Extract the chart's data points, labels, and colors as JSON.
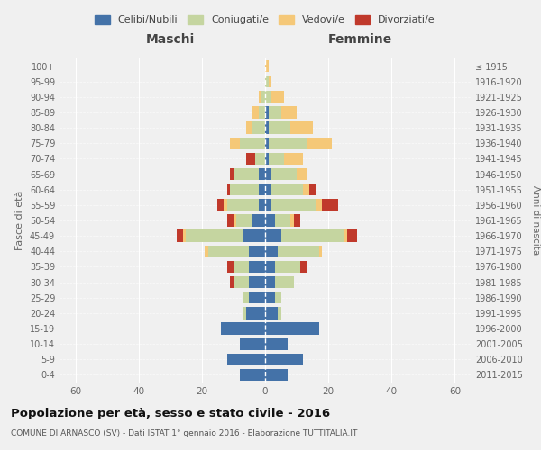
{
  "age_groups": [
    "0-4",
    "5-9",
    "10-14",
    "15-19",
    "20-24",
    "25-29",
    "30-34",
    "35-39",
    "40-44",
    "45-49",
    "50-54",
    "55-59",
    "60-64",
    "65-69",
    "70-74",
    "75-79",
    "80-84",
    "85-89",
    "90-94",
    "95-99",
    "100+"
  ],
  "birth_years": [
    "2011-2015",
    "2006-2010",
    "2001-2005",
    "1996-2000",
    "1991-1995",
    "1986-1990",
    "1981-1985",
    "1976-1980",
    "1971-1975",
    "1966-1970",
    "1961-1965",
    "1956-1960",
    "1951-1955",
    "1946-1950",
    "1941-1945",
    "1936-1940",
    "1931-1935",
    "1926-1930",
    "1921-1925",
    "1916-1920",
    "≤ 1915"
  ],
  "maschi": {
    "celibi": [
      8,
      12,
      8,
      14,
      6,
      5,
      5,
      5,
      5,
      7,
      4,
      2,
      2,
      2,
      0,
      0,
      0,
      0,
      0,
      0,
      0
    ],
    "coniugati": [
      0,
      0,
      0,
      0,
      1,
      2,
      5,
      5,
      13,
      18,
      5,
      10,
      9,
      8,
      3,
      8,
      4,
      2,
      1,
      0,
      0
    ],
    "vedovi": [
      0,
      0,
      0,
      0,
      0,
      0,
      0,
      0,
      1,
      1,
      1,
      1,
      0,
      0,
      0,
      3,
      2,
      2,
      1,
      0,
      0
    ],
    "divorziati": [
      0,
      0,
      0,
      0,
      0,
      0,
      1,
      2,
      0,
      2,
      2,
      2,
      1,
      1,
      3,
      0,
      0,
      0,
      0,
      0,
      0
    ]
  },
  "femmine": {
    "nubili": [
      7,
      12,
      7,
      17,
      4,
      3,
      3,
      3,
      4,
      5,
      3,
      2,
      2,
      2,
      1,
      1,
      1,
      1,
      0,
      0,
      0
    ],
    "coniugate": [
      0,
      0,
      0,
      0,
      1,
      2,
      6,
      8,
      13,
      20,
      5,
      14,
      10,
      8,
      5,
      12,
      7,
      4,
      2,
      1,
      0
    ],
    "vedove": [
      0,
      0,
      0,
      0,
      0,
      0,
      0,
      0,
      1,
      1,
      1,
      2,
      2,
      3,
      6,
      8,
      7,
      5,
      4,
      1,
      1
    ],
    "divorziate": [
      0,
      0,
      0,
      0,
      0,
      0,
      0,
      2,
      0,
      3,
      2,
      5,
      2,
      0,
      0,
      0,
      0,
      0,
      0,
      0,
      0
    ]
  },
  "colors": {
    "celibi": "#4472a8",
    "coniugati": "#c5d5a0",
    "vedovi": "#f5c878",
    "divorziati": "#c0392b"
  },
  "xlim": 65,
  "title": "Popolazione per età, sesso e stato civile - 2016",
  "subtitle": "COMUNE DI ARNASCO (SV) - Dati ISTAT 1° gennaio 2016 - Elaborazione TUTTITALIA.IT",
  "ylabel": "Fasce di età",
  "ylabel_right": "Anni di nascita",
  "xlabel_left": "Maschi",
  "xlabel_right": "Femmine",
  "bg_color": "#f0f0f0",
  "legend_labels": [
    "Celibi/Nubili",
    "Coniugati/e",
    "Vedovi/e",
    "Divorziati/e"
  ]
}
